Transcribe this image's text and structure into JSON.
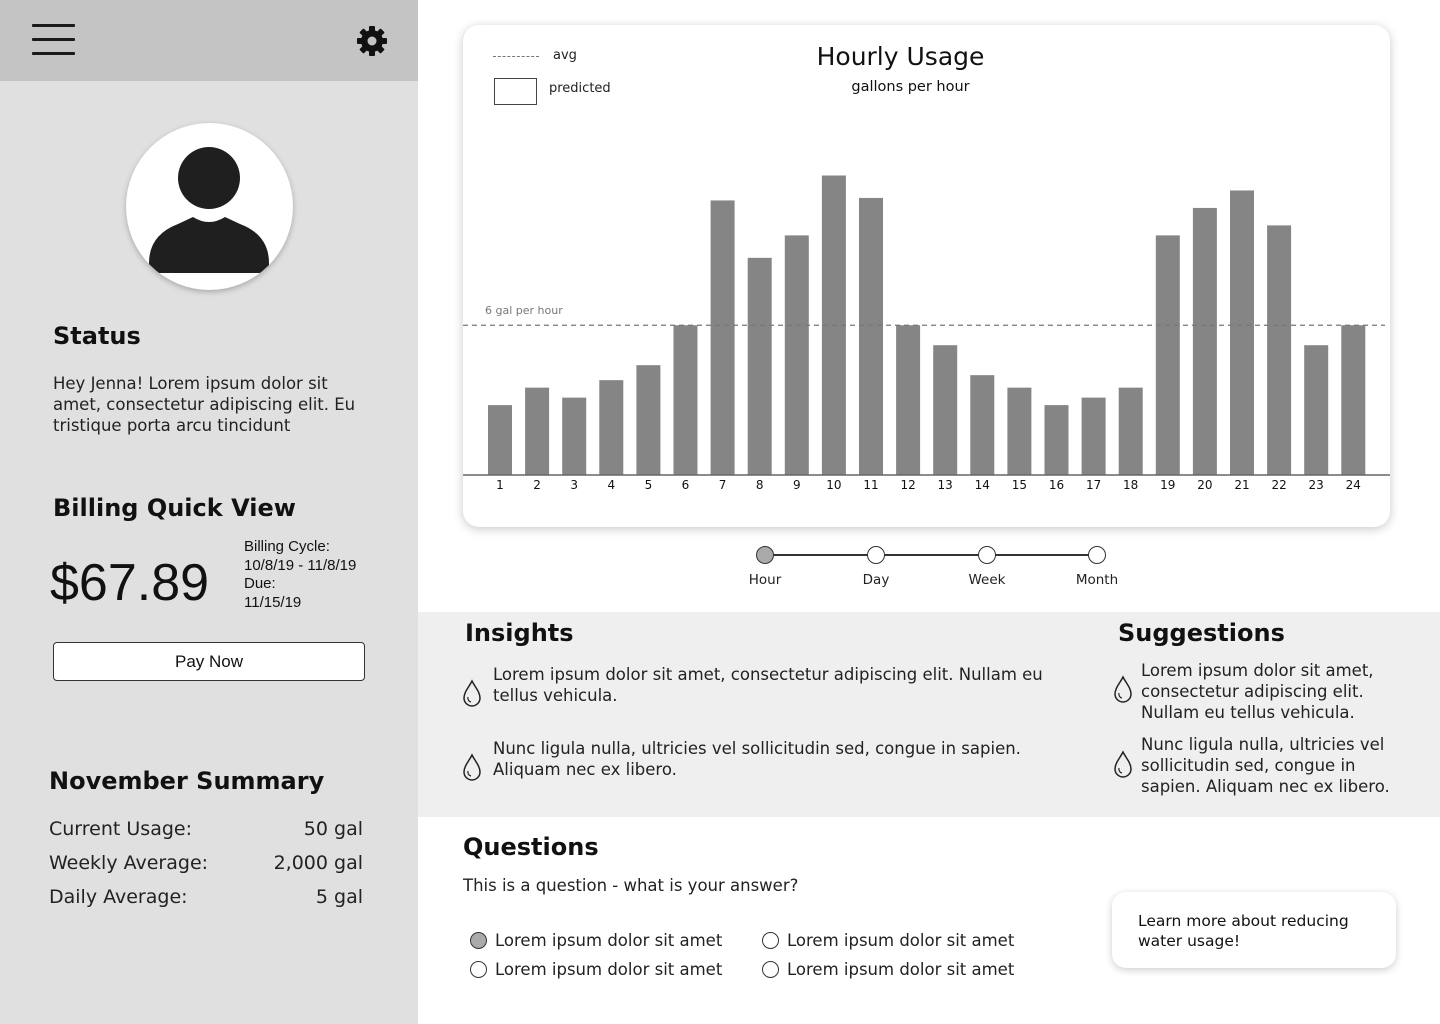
{
  "sidebar": {
    "status_heading": "Status",
    "status_text": "Hey Jenna! Lorem ipsum dolor sit amet, consectetur adipiscing elit. Eu tristique porta arcu tincidunt",
    "billing_heading": "Billing Quick View",
    "amount": "$67.89",
    "billing_cycle_label": "Billing Cycle:",
    "billing_cycle_value": "10/8/19 - 11/8/19",
    "due_label": "Due:",
    "due_value": "11/15/19",
    "pay_button": "Pay Now",
    "summary_heading": "November Summary",
    "summary_rows": [
      {
        "label": "Current Usage:",
        "value": "50 gal"
      },
      {
        "label": "Weekly Average:",
        "value": "2,000 gal"
      },
      {
        "label": "Daily Average:",
        "value": "5 gal"
      }
    ],
    "icons": {
      "menu": "hamburger-menu-icon",
      "settings": "gear-icon",
      "avatar": "user-avatar-icon"
    }
  },
  "chart_data": {
    "type": "bar",
    "title": "Hourly Usage",
    "subtitle": "gallons per hour",
    "legend": {
      "avg": "avg",
      "predicted": "predicted",
      "placement": "top-left"
    },
    "avg_label": "6 gal per hour",
    "avg_value": 6,
    "categories": [
      "1",
      "2",
      "3",
      "4",
      "5",
      "6",
      "7",
      "8",
      "9",
      "10",
      "11",
      "12",
      "13",
      "14",
      "15",
      "16",
      "17",
      "18",
      "19",
      "20",
      "21",
      "22",
      "23",
      "24"
    ],
    "values": [
      2.8,
      3.5,
      3.1,
      3.8,
      4.4,
      6.0,
      11.0,
      8.7,
      9.6,
      12.0,
      11.1,
      6.0,
      5.2,
      4.0,
      3.5,
      2.8,
      3.1,
      3.5,
      9.6,
      10.7,
      11.4,
      10.0,
      5.2,
      6.0
    ],
    "ylim": [
      0,
      12.5
    ],
    "grid": false,
    "bar_color": "#858585"
  },
  "timeline": {
    "options": [
      "Hour",
      "Day",
      "Week",
      "Month"
    ],
    "selected": "Hour"
  },
  "insights": {
    "heading": "Insights",
    "items": [
      "Lorem ipsum dolor sit amet, consectetur adipiscing elit. Nullam eu tellus vehicula.",
      "Nunc ligula nulla, ultricies vel sollicitudin sed, congue in sapien. Aliquam nec ex libero."
    ]
  },
  "suggestions": {
    "heading": "Suggestions",
    "items": [
      "Lorem ipsum dolor sit amet, consectetur adipiscing elit. Nullam eu tellus vehicula.",
      "Nunc ligula nulla, ultricies vel sollicitudin sed, congue in sapien. Aliquam nec ex libero."
    ]
  },
  "questions": {
    "heading": "Questions",
    "question": "This is a question - what is your answer?",
    "options": [
      {
        "label": "Lorem ipsum dolor sit amet",
        "checked": true
      },
      {
        "label": "Lorem ipsum dolor sit amet",
        "checked": false
      },
      {
        "label": "Lorem ipsum dolor sit amet",
        "checked": false
      },
      {
        "label": "Lorem ipsum dolor sit amet",
        "checked": false
      }
    ]
  },
  "learn_more": "Learn more about reducing water usage!",
  "colors": {
    "sidebar_bg": "#e0e0e0",
    "sidebar_top": "#c4c4c4",
    "band_bg": "#efefef",
    "bar": "#858585"
  }
}
